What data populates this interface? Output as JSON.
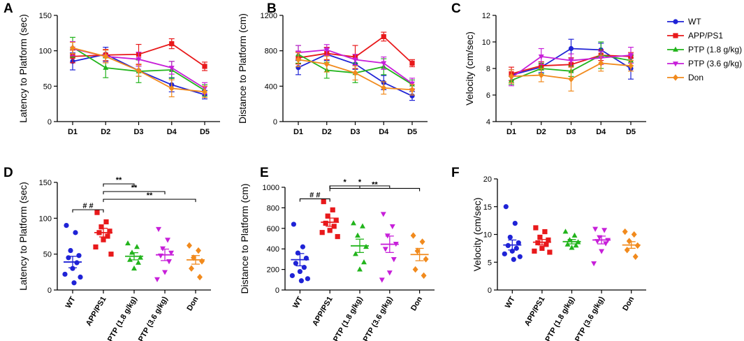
{
  "colors": {
    "WT": "#1f23d6",
    "APP/PS1": "#e8191b",
    "PTP (1.8 g/kg)": "#22b41c",
    "PTP (3.6 g/kg)": "#c71fd9",
    "Don": "#f18a1d"
  },
  "legend": {
    "entries": [
      {
        "name": "WT",
        "marker": "circle"
      },
      {
        "name": "APP/PS1",
        "marker": "square"
      },
      {
        "name": "PTP (1.8 g/kg)",
        "marker": "triangle-up"
      },
      {
        "name": "PTP (3.6 g/kg)",
        "marker": "triangle-down"
      },
      {
        "name": "Don",
        "marker": "diamond"
      }
    ]
  },
  "chart_data": [
    {
      "panel": "A",
      "type": "line",
      "ylabel": "Latency to Platform (sec)",
      "x": [
        "D1",
        "D2",
        "D3",
        "D4",
        "D5"
      ],
      "ylim": [
        0,
        150
      ],
      "yticks": [
        0,
        50,
        100,
        150
      ],
      "series": [
        {
          "name": "WT",
          "values": [
            85,
            95,
            72,
            52,
            38
          ],
          "errors": [
            12,
            10,
            8,
            10,
            6
          ]
        },
        {
          "name": "APP/PS1",
          "values": [
            92,
            94,
            95,
            110,
            78
          ],
          "errors": [
            9,
            8,
            14,
            7,
            6
          ]
        },
        {
          "name": "PTP (1.8 g/kg)",
          "values": [
            105,
            76,
            71,
            73,
            44
          ],
          "errors": [
            14,
            14,
            16,
            12,
            8
          ]
        },
        {
          "name": "PTP (3.6 g/kg)",
          "values": [
            103,
            92,
            88,
            76,
            47
          ],
          "errors": [
            10,
            9,
            10,
            9,
            8
          ]
        },
        {
          "name": "Don",
          "values": [
            104,
            92,
            72,
            47,
            42
          ],
          "errors": [
            8,
            9,
            8,
            12,
            8
          ]
        }
      ]
    },
    {
      "panel": "B",
      "type": "line",
      "ylabel": "Distance to Platform (cm)",
      "x": [
        "D1",
        "D2",
        "D3",
        "D4",
        "D5"
      ],
      "ylim": [
        0,
        1200
      ],
      "yticks": [
        0,
        400,
        800,
        1200
      ],
      "series": [
        {
          "name": "WT",
          "values": [
            610,
            760,
            650,
            440,
            290
          ],
          "errors": [
            80,
            70,
            60,
            80,
            50
          ]
        },
        {
          "name": "APP/PS1",
          "values": [
            720,
            770,
            730,
            960,
            660
          ],
          "errors": [
            70,
            70,
            130,
            50,
            40
          ]
        },
        {
          "name": "PTP (1.8 g/kg)",
          "values": [
            760,
            580,
            550,
            620,
            420
          ],
          "errors": [
            100,
            90,
            110,
            90,
            50
          ]
        },
        {
          "name": "PTP (3.6 g/kg)",
          "values": [
            780,
            810,
            700,
            660,
            430
          ],
          "errors": [
            80,
            60,
            60,
            70,
            60
          ]
        },
        {
          "name": "Don",
          "values": [
            700,
            650,
            550,
            380,
            360
          ],
          "errors": [
            80,
            90,
            80,
            70,
            60
          ]
        }
      ]
    },
    {
      "panel": "C",
      "type": "line",
      "ylabel": "Velocity (cm/sec)",
      "x": [
        "D1",
        "D2",
        "D3",
        "D4",
        "D5"
      ],
      "ylim": [
        4,
        12
      ],
      "yticks": [
        4,
        6,
        8,
        10,
        12
      ],
      "series": [
        {
          "name": "WT",
          "values": [
            7.5,
            8.1,
            9.5,
            9.4,
            8.0
          ],
          "errors": [
            0.4,
            0.4,
            0.7,
            0.5,
            0.8
          ]
        },
        {
          "name": "APP/PS1",
          "values": [
            7.6,
            8.2,
            8.3,
            9.0,
            8.9
          ],
          "errors": [
            0.5,
            0.3,
            0.5,
            0.4,
            0.3
          ]
        },
        {
          "name": "PTP (1.8 g/kg)",
          "values": [
            7.1,
            8.0,
            7.8,
            9.0,
            8.6
          ],
          "errors": [
            0.3,
            0.4,
            0.4,
            1.0,
            0.4
          ]
        },
        {
          "name": "PTP (3.6 g/kg)",
          "values": [
            7.3,
            8.9,
            8.6,
            8.8,
            9.0
          ],
          "errors": [
            0.6,
            0.6,
            0.5,
            0.5,
            0.6
          ]
        },
        {
          "name": "Don",
          "values": [
            7.4,
            7.5,
            7.2,
            8.4,
            8.2
          ],
          "errors": [
            0.5,
            0.5,
            0.9,
            0.6,
            0.4
          ]
        }
      ]
    },
    {
      "panel": "D",
      "type": "scatter",
      "ylabel": "Latency to Platform (sec)",
      "categories": [
        "WT",
        "APP/PS1",
        "PTP (1.8 g/kg)",
        "PTP (3.6 g/kg)",
        "Don"
      ],
      "ylim": [
        0,
        150
      ],
      "yticks": [
        0,
        50,
        100,
        150
      ],
      "groups": [
        {
          "name": "WT",
          "points": [
            90,
            80,
            55,
            48,
            45,
            38,
            30,
            22,
            18,
            10
          ],
          "mean": 39,
          "sem": 8
        },
        {
          "name": "APP/PS1",
          "points": [
            108,
            95,
            88,
            82,
            80,
            75,
            70,
            60,
            50
          ],
          "mean": 80,
          "sem": 6
        },
        {
          "name": "PTP (1.8 g/kg)",
          "points": [
            65,
            60,
            52,
            45,
            42,
            38,
            30
          ],
          "mean": 47,
          "sem": 5
        },
        {
          "name": "PTP (3.6 g/kg)",
          "points": [
            85,
            70,
            58,
            52,
            48,
            40,
            25,
            15
          ],
          "mean": 49,
          "sem": 8
        },
        {
          "name": "Don",
          "points": [
            62,
            55,
            45,
            40,
            30,
            18
          ],
          "mean": 42,
          "sem": 6
        }
      ],
      "significance": [
        {
          "from": "WT",
          "to": "APP/PS1",
          "label": "# #"
        },
        {
          "from": "APP/PS1",
          "to": "PTP (1.8 g/kg)",
          "label": "**"
        },
        {
          "from": "APP/PS1",
          "to": "PTP (3.6 g/kg)",
          "label": "**"
        },
        {
          "from": "APP/PS1",
          "to": "Don",
          "label": "**"
        }
      ]
    },
    {
      "panel": "E",
      "type": "scatter",
      "ylabel": "Distance to Platform (cm)",
      "categories": [
        "WT",
        "APP/PS1",
        "PTP (1.8 g/kg)",
        "PTP (3.6 g/kg)",
        "Don"
      ],
      "ylim": [
        0,
        1000
      ],
      "yticks": [
        0,
        200,
        400,
        600,
        800,
        1000
      ],
      "groups": [
        {
          "name": "WT",
          "points": [
            640,
            420,
            360,
            310,
            260,
            220,
            180,
            140,
            110,
            90
          ],
          "mean": 295,
          "sem": 60
        },
        {
          "name": "APP/PS1",
          "points": [
            860,
            780,
            720,
            680,
            650,
            620,
            580,
            560,
            520
          ],
          "mean": 660,
          "sem": 40
        },
        {
          "name": "PTP (1.8 g/kg)",
          "points": [
            650,
            620,
            530,
            420,
            350,
            270,
            200
          ],
          "mean": 430,
          "sem": 65
        },
        {
          "name": "PTP (3.6 g/kg)",
          "points": [
            740,
            620,
            530,
            450,
            400,
            300,
            170,
            100
          ],
          "mean": 445,
          "sem": 80
        },
        {
          "name": "Don",
          "points": [
            530,
            470,
            380,
            300,
            200,
            140
          ],
          "mean": 345,
          "sem": 60
        }
      ],
      "significance": [
        {
          "from": "WT",
          "to": "APP/PS1",
          "label": "# #"
        },
        {
          "from": "APP/PS1",
          "to": "PTP (1.8 g/kg)",
          "label": "*"
        },
        {
          "from": "APP/PS1",
          "to": "PTP (3.6 g/kg)",
          "label": "*"
        },
        {
          "from": "APP/PS1",
          "to": "Don",
          "label": "**"
        }
      ]
    },
    {
      "panel": "F",
      "type": "scatter",
      "ylabel": "Velocity (cm/sec)",
      "categories": [
        "WT",
        "APP/PS1",
        "PTP (1.8 g/kg)",
        "PTP (3.6 g/kg)",
        "Don"
      ],
      "ylim": [
        0,
        20
      ],
      "yticks": [
        0,
        5,
        10,
        15,
        20
      ],
      "groups": [
        {
          "name": "WT",
          "points": [
            15.0,
            12.0,
            9.5,
            8.5,
            8.0,
            7.5,
            7.0,
            6.5,
            6.0,
            5.5
          ],
          "mean": 8.1,
          "sem": 0.9
        },
        {
          "name": "APP/PS1",
          "points": [
            11.2,
            10.5,
            9.5,
            9.0,
            8.5,
            8.2,
            7.5,
            7.0,
            6.8
          ],
          "mean": 8.6,
          "sem": 0.5
        },
        {
          "name": "PTP (1.8 g/kg)",
          "points": [
            10.5,
            9.8,
            9.0,
            8.6,
            8.2,
            8.0,
            7.6
          ],
          "mean": 8.7,
          "sem": 0.4
        },
        {
          "name": "PTP (3.6 g/kg)",
          "points": [
            11.0,
            10.8,
            9.5,
            9.0,
            8.8,
            8.4,
            7.0,
            4.8
          ],
          "mean": 9.0,
          "sem": 0.7
        },
        {
          "name": "Don",
          "points": [
            10.5,
            10.0,
            8.8,
            8.0,
            7.2,
            6.0
          ],
          "mean": 8.1,
          "sem": 0.6
        }
      ],
      "significance": []
    }
  ]
}
